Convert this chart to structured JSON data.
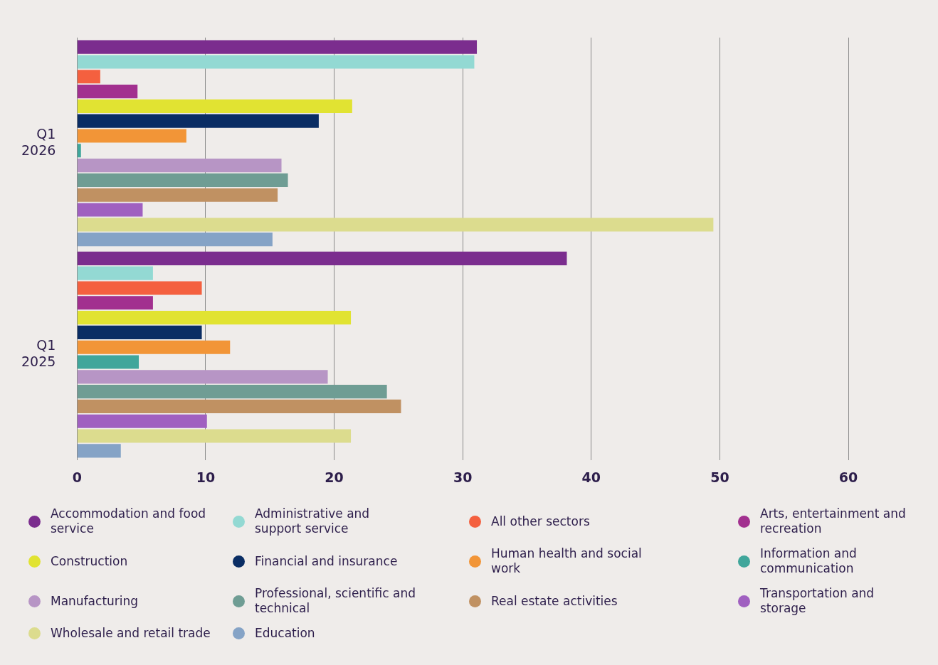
{
  "chart_data": {
    "type": "bar",
    "orientation": "horizontal",
    "categories": [
      "Q1 2026",
      "Q1 2025"
    ],
    "xlim": [
      0,
      60
    ],
    "xticks": [
      0,
      10,
      20,
      30,
      40,
      50,
      60
    ],
    "grid": "x",
    "legend": "bottom",
    "series": [
      {
        "name": "Accommodation and food service",
        "color": "#7b2d8e",
        "values": [
          31.1,
          38.1
        ]
      },
      {
        "name": "Administrative and support service",
        "color": "#93d9d3",
        "values": [
          30.9,
          5.9
        ]
      },
      {
        "name": "All other sectors",
        "color": "#f4603f",
        "values": [
          1.8,
          9.7
        ]
      },
      {
        "name": "Arts, entertainment and recreation",
        "color": "#a2308f",
        "values": [
          4.7,
          5.9
        ]
      },
      {
        "name": "Construction",
        "color": "#e1e332",
        "values": [
          21.4,
          21.3
        ]
      },
      {
        "name": "Financial and insurance",
        "color": "#0a2d64",
        "values": [
          18.8,
          9.7
        ]
      },
      {
        "name": "Human health and social work",
        "color": "#f29537",
        "values": [
          8.5,
          11.9
        ]
      },
      {
        "name": "Information and communication",
        "color": "#40a69b",
        "values": [
          0.3,
          4.8
        ]
      },
      {
        "name": "Manufacturing",
        "color": "#b795c5",
        "values": [
          15.9,
          19.5
        ]
      },
      {
        "name": "Professional, scientific and technical",
        "color": "#6f9d94",
        "values": [
          16.4,
          24.1
        ]
      },
      {
        "name": "Real estate activities",
        "color": "#c09162",
        "values": [
          15.6,
          25.2
        ]
      },
      {
        "name": "Transportation and storage",
        "color": "#a060c0",
        "values": [
          5.1,
          10.1
        ]
      },
      {
        "name": "Wholesale and retail trade",
        "color": "#dcdc8e",
        "values": [
          49.5,
          21.3
        ]
      },
      {
        "name": "Education",
        "color": "#85a3c6",
        "values": [
          15.2,
          3.4
        ]
      }
    ]
  }
}
